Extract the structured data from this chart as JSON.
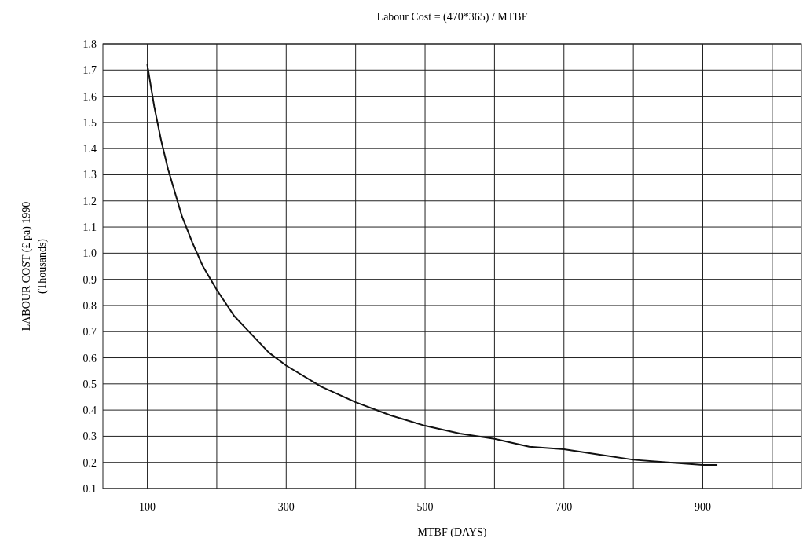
{
  "chart_data": {
    "type": "line",
    "title": "Labour Cost = (470*365) / MTBF",
    "xlabel": "MTBF (DAYS)",
    "ylabel": "LABOUR COST (£ pa) 1990\n(Thousands)",
    "xlim": [
      36,
      1042
    ],
    "xticks": [
      100,
      {
        "value": 200,
        "label": null
      },
      300,
      {
        "value": 400,
        "label": null
      },
      500,
      {
        "value": 600,
        "label": null
      },
      700,
      {
        "value": 800,
        "label": null
      },
      900,
      {
        "value": 1000,
        "label": null
      }
    ],
    "ylim": [
      0.1,
      1.8
    ],
    "yticks": [
      {
        "value": 0.1,
        "label": "0.1"
      },
      {
        "value": 0.2,
        "label": "0.2"
      },
      {
        "value": 0.3,
        "label": "0.3"
      },
      {
        "value": 0.4,
        "label": "0.4"
      },
      {
        "value": 0.5,
        "label": "0.5"
      },
      {
        "value": 0.6,
        "label": "0.6"
      },
      {
        "value": 0.7,
        "label": "0.7"
      },
      {
        "value": 0.8,
        "label": "0.8"
      },
      {
        "value": 0.9,
        "label": "0.9"
      },
      {
        "value": 1.0,
        "label": "1.0"
      },
      {
        "value": 1.1,
        "label": "1.1"
      },
      {
        "value": 1.2,
        "label": "1.2"
      },
      {
        "value": 1.3,
        "label": "1.3"
      },
      {
        "value": 1.4,
        "label": "1.4"
      },
      {
        "value": 1.5,
        "label": "1.5"
      },
      {
        "value": 1.6,
        "label": "1.6"
      },
      {
        "value": 1.7,
        "label": "1.7"
      },
      {
        "value": 1.8,
        "label": "1.8"
      }
    ],
    "grid": true,
    "marker": "none",
    "line_style": "solid",
    "x": [
      100,
      110,
      120,
      130,
      140,
      150,
      165,
      180,
      200,
      225,
      250,
      275,
      300,
      350,
      400,
      450,
      500,
      550,
      600,
      650,
      700,
      750,
      800,
      850,
      900,
      920
    ],
    "series": [
      {
        "color": "#111111",
        "values": [
          1.72,
          1.56,
          1.43,
          1.32,
          1.23,
          1.14,
          1.04,
          0.95,
          0.86,
          0.76,
          0.69,
          0.62,
          0.57,
          0.49,
          0.43,
          0.38,
          0.34,
          0.31,
          0.29,
          0.26,
          0.25,
          0.23,
          0.21,
          0.2,
          0.19,
          0.19
        ]
      }
    ]
  }
}
